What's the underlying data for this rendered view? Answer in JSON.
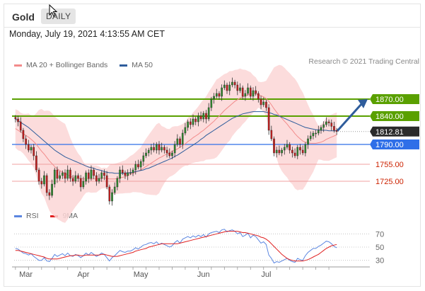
{
  "header": {
    "title": "Gold",
    "timeframe_tab": "DAILY"
  },
  "timestamp": "Monday, July 19, 2021 4:13:55 AM CET",
  "legend_main": [
    {
      "label": "MA 20 + Bollinger Bands",
      "color": "#f28b8b"
    },
    {
      "label": "MA 50",
      "color": "#2f5d9c"
    }
  ],
  "legend_rsi": [
    {
      "label": "RSI",
      "color": "#5b86e0"
    },
    {
      "label": "9MA",
      "color": "#e02020"
    }
  ],
  "credit": "Research © 2021 Trading Central",
  "colors": {
    "resistance": "#5aa000",
    "support": "#2f6fe8",
    "current": "#2b2b2b",
    "target_red": "#cc2200",
    "arrow": "#2f5d9c",
    "bands": "#fbd6d6"
  },
  "chart_data": [
    {
      "type": "candlestick",
      "title": "Gold",
      "x_labels": [
        "Mar",
        "Apr",
        "May",
        "Jun",
        "Jul"
      ],
      "ylim": [
        1670,
        1920
      ],
      "levels": [
        {
          "label": "1870.00",
          "value": 1870,
          "kind": "resistance"
        },
        {
          "label": "1840.00",
          "value": 1840,
          "kind": "resistance"
        },
        {
          "label": "1812.81",
          "value": 1812.81,
          "kind": "current"
        },
        {
          "label": "1790.00",
          "value": 1790,
          "kind": "support"
        },
        {
          "label": "1755.00",
          "value": 1755,
          "kind": "target"
        },
        {
          "label": "1725.00",
          "value": 1725,
          "kind": "target"
        }
      ],
      "close": [
        1835,
        1830,
        1815,
        1800,
        1790,
        1780,
        1785,
        1770,
        1745,
        1725,
        1720,
        1735,
        1705,
        1700,
        1720,
        1745,
        1730,
        1735,
        1740,
        1730,
        1745,
        1730,
        1725,
        1735,
        1730,
        1715,
        1725,
        1740,
        1730,
        1745,
        1735,
        1725,
        1730,
        1740,
        1735,
        1715,
        1690,
        1705,
        1715,
        1730,
        1745,
        1740,
        1735,
        1740,
        1740,
        1745,
        1755,
        1750,
        1760,
        1770,
        1775,
        1780,
        1785,
        1780,
        1790,
        1780,
        1785,
        1780,
        1775,
        1770,
        1775,
        1790,
        1800,
        1790,
        1810,
        1820,
        1830,
        1825,
        1835,
        1830,
        1840,
        1835,
        1845,
        1835,
        1855,
        1870,
        1875,
        1880,
        1875,
        1890,
        1895,
        1885,
        1895,
        1900,
        1895,
        1885,
        1890,
        1875,
        1880,
        1890,
        1875,
        1885,
        1880,
        1870,
        1860,
        1865,
        1855,
        1815,
        1800,
        1775,
        1780,
        1775,
        1780,
        1785,
        1790,
        1780,
        1775,
        1770,
        1785,
        1780,
        1775,
        1790,
        1800,
        1805,
        1810,
        1810,
        1815,
        1820,
        1825,
        1830,
        1828,
        1822,
        1815,
        1812.81
      ],
      "ma20": [
        1818,
        1815,
        1812,
        1809,
        1806,
        1803,
        1799,
        1795,
        1790,
        1784,
        1778,
        1773,
        1767,
        1761,
        1756,
        1751,
        1747,
        1744,
        1741,
        1739,
        1736,
        1734,
        1732,
        1731,
        1730,
        1730,
        1729,
        1729,
        1729,
        1729,
        1729,
        1729,
        1730,
        1730,
        1731,
        1730,
        1729,
        1729,
        1729,
        1730,
        1731,
        1732,
        1733,
        1735,
        1737,
        1739,
        1741,
        1743,
        1745,
        1748,
        1751,
        1754,
        1757,
        1760,
        1763,
        1766,
        1768,
        1771,
        1773,
        1775,
        1778,
        1780,
        1782,
        1785,
        1788,
        1791,
        1795,
        1798,
        1802,
        1805,
        1808,
        1812,
        1815,
        1819,
        1823,
        1827,
        1831,
        1836,
        1840,
        1845,
        1850,
        1854,
        1858,
        1862,
        1866,
        1869,
        1872,
        1874,
        1876,
        1878,
        1879,
        1879,
        1879,
        1878,
        1876,
        1874,
        1871,
        1866,
        1860,
        1853,
        1847,
        1841,
        1836,
        1831,
        1826,
        1820,
        1815,
        1809,
        1804,
        1800,
        1796,
        1794,
        1793,
        1792,
        1792,
        1792,
        1793,
        1794,
        1796,
        1799,
        1801,
        1803,
        1805,
        1807
      ],
      "ma50": [
        1835,
        1832,
        1829,
        1826,
        1823,
        1820,
        1816,
        1812,
        1808,
        1804,
        1800,
        1796,
        1792,
        1788,
        1784,
        1780,
        1777,
        1774,
        1771,
        1768,
        1766,
        1764,
        1762,
        1760,
        1758,
        1756,
        1754,
        1752,
        1750,
        1749,
        1748,
        1746,
        1745,
        1744,
        1742,
        1741,
        1740,
        1740,
        1739,
        1739,
        1739,
        1739,
        1739,
        1740,
        1740,
        1741,
        1742,
        1743,
        1744,
        1745,
        1747,
        1748,
        1750,
        1752,
        1754,
        1756,
        1758,
        1760,
        1762,
        1764,
        1766,
        1769,
        1771,
        1774,
        1777,
        1780,
        1783,
        1786,
        1789,
        1792,
        1795,
        1799,
        1802,
        1806,
        1809,
        1812,
        1815,
        1818,
        1821,
        1824,
        1827,
        1830,
        1833,
        1836,
        1838,
        1840,
        1842,
        1844,
        1845,
        1846,
        1847,
        1848,
        1848,
        1848,
        1848,
        1848,
        1847,
        1846,
        1845,
        1843,
        1842,
        1840,
        1838,
        1836,
        1834,
        1832,
        1830,
        1828,
        1826,
        1824,
        1822,
        1820,
        1819,
        1818,
        1817,
        1816,
        1816,
        1815,
        1815,
        1815,
        1814,
        1814,
        1814,
        1814
      ],
      "rsi": [
        48,
        47,
        44,
        41,
        40,
        38,
        40,
        36,
        33,
        30,
        30,
        34,
        29,
        28,
        33,
        39,
        36,
        38,
        40,
        37,
        41,
        37,
        36,
        39,
        37,
        34,
        37,
        41,
        38,
        42,
        39,
        36,
        38,
        41,
        39,
        34,
        29,
        34,
        37,
        41,
        45,
        43,
        42,
        44,
        44,
        46,
        49,
        47,
        50,
        53,
        54,
        56,
        57,
        55,
        58,
        54,
        56,
        54,
        52,
        50,
        52,
        57,
        60,
        56,
        62,
        64,
        66,
        64,
        67,
        65,
        68,
        66,
        69,
        65,
        70,
        72,
        73,
        74,
        72,
        76,
        77,
        73,
        75,
        76,
        74,
        70,
        72,
        66,
        68,
        71,
        64,
        68,
        66,
        61,
        56,
        58,
        54,
        38,
        33,
        26,
        28,
        27,
        29,
        31,
        33,
        30,
        28,
        27,
        33,
        31,
        30,
        37,
        42,
        45,
        48,
        48,
        51,
        53,
        56,
        59,
        58,
        55,
        51,
        49
      ],
      "rsi_ma9": [
        45,
        45,
        44,
        43,
        42,
        41,
        40,
        39,
        38,
        37,
        36,
        35,
        33,
        32,
        32,
        32,
        32,
        33,
        34,
        35,
        36,
        37,
        37,
        38,
        38,
        37,
        37,
        38,
        38,
        38,
        38,
        38,
        38,
        39,
        39,
        38,
        37,
        36,
        36,
        36,
        37,
        38,
        39,
        40,
        41,
        42,
        44,
        45,
        46,
        47,
        48,
        50,
        51,
        52,
        53,
        54,
        55,
        55,
        55,
        55,
        55,
        55,
        55,
        56,
        57,
        58,
        59,
        60,
        61,
        62,
        63,
        64,
        65,
        66,
        67,
        68,
        69,
        70,
        71,
        72,
        73,
        74,
        74,
        74,
        74,
        74,
        73,
        72,
        72,
        71,
        70,
        69,
        68,
        67,
        65,
        64,
        62,
        59,
        55,
        51,
        47,
        43,
        39,
        36,
        33,
        31,
        30,
        29,
        29,
        29,
        29,
        30,
        31,
        33,
        35,
        37,
        39,
        42,
        45,
        48,
        50,
        52,
        53,
        54
      ],
      "rsi_levels": [
        70,
        50,
        30
      ]
    }
  ]
}
